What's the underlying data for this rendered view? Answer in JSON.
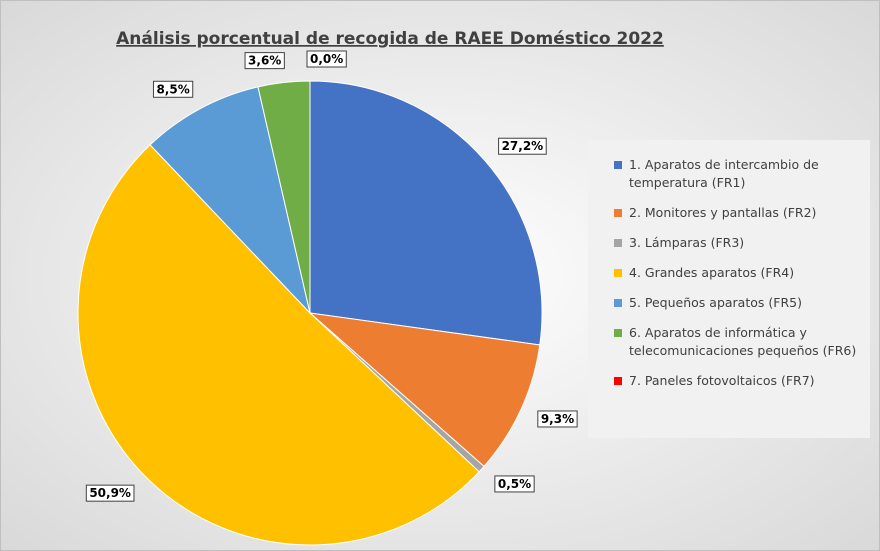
{
  "chart_data": {
    "type": "pie",
    "title": "Análisis porcentual de recogida de RAEE Doméstico 2022",
    "categories": [
      "1. Aparatos de intercambio de temperatura (FR1)",
      "2. Monitores y pantallas (FR2)",
      "3. Lámparas (FR3)",
      "4. Grandes aparatos (FR4)",
      "5. Pequeños aparatos (FR5)",
      "6. Aparatos de informática y telecomunicaciones pequeños (FR6)",
      "7. Paneles fotovoltaicos (FR7)"
    ],
    "values": [
      27.2,
      9.3,
      0.5,
      50.9,
      8.5,
      3.6,
      0.0
    ],
    "value_labels": [
      "27,2%",
      "9,3%",
      "0,5%",
      "50,9%",
      "8,5%",
      "3,6%",
      "0,0%"
    ],
    "colors": [
      "#4472c4",
      "#ed7d31",
      "#a5a5a5",
      "#ffc000",
      "#5b9bd5",
      "#70ad47",
      "#ff0000"
    ],
    "legend": "right"
  }
}
